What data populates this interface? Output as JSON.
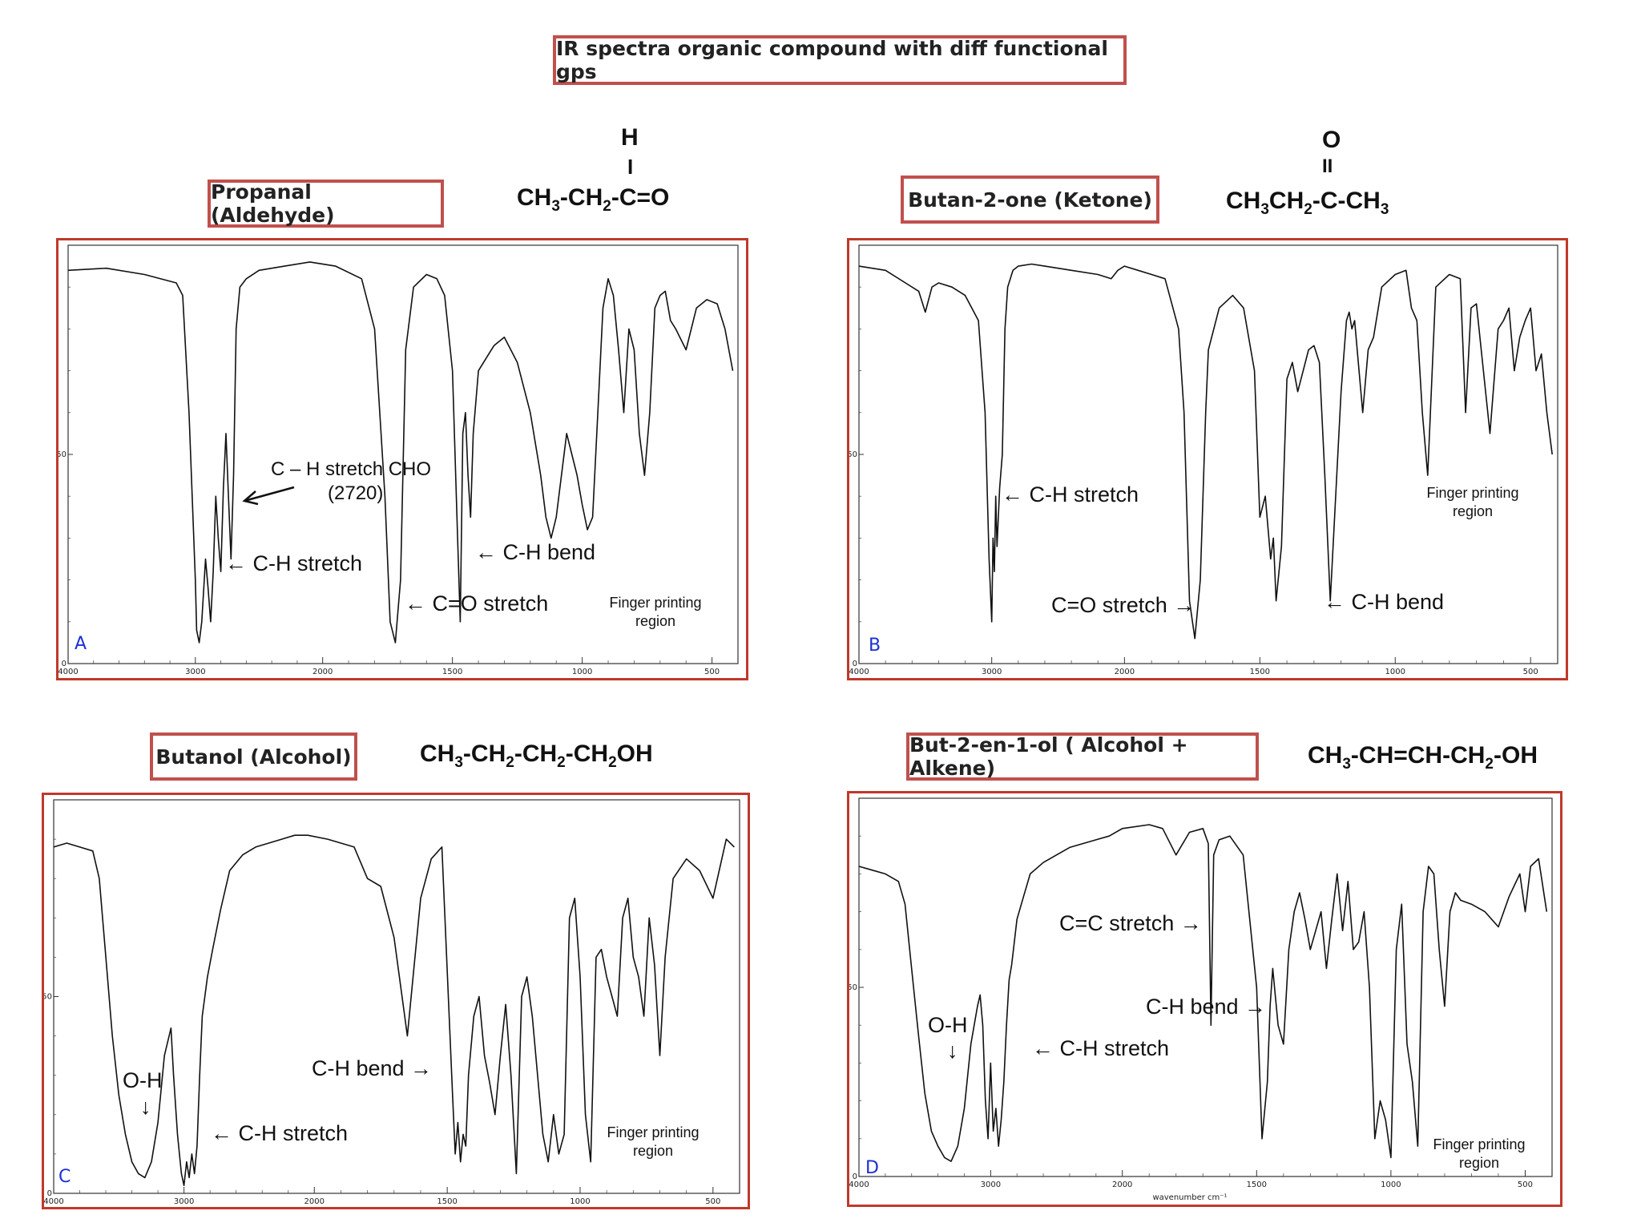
{
  "page_title": "IR spectra organic compound with diff functional gps",
  "compounds": [
    {
      "title": "Propanal (Aldehyde)",
      "formula_top": "H",
      "formula_mid": "I"
    },
    {
      "title": "Butan-2-one  (Ketone)",
      "formula_top": "O",
      "formula_mid": "II"
    },
    {
      "title": "Butanol (Alcohol)"
    },
    {
      "title": "But-2-en-1-ol ( Alcohol + Alkene)"
    }
  ],
  "chart_data": [
    {
      "type": "line",
      "panel_letter": "A",
      "xlabel": "",
      "ylabel": "",
      "x_ticks": [
        "4000",
        "3000",
        "2000",
        "1500",
        "1000",
        "500"
      ],
      "y_ticks": [
        "50",
        "0"
      ],
      "series": [
        {
          "x": [
            4000,
            3700,
            3400,
            3150,
            3100,
            3050,
            3000,
            2990,
            2970,
            2950,
            2920,
            2900,
            2880,
            2860,
            2840,
            2820,
            2800,
            2780,
            2760,
            2740,
            2720,
            2700,
            2680,
            2650,
            2600,
            2500,
            2300,
            2100,
            1950,
            1850,
            1800,
            1760,
            1740,
            1720,
            1700,
            1680,
            1650,
            1600,
            1560,
            1530,
            1500,
            1480,
            1470,
            1460,
            1450,
            1440,
            1430,
            1420,
            1400,
            1380,
            1360,
            1340,
            1300,
            1250,
            1200,
            1160,
            1140,
            1120,
            1100,
            1080,
            1060,
            1040,
            1020,
            1000,
            980,
            960,
            940,
            920,
            900,
            880,
            860,
            840,
            820,
            800,
            780,
            760,
            740,
            720,
            700,
            680,
            660,
            640,
            600,
            560,
            520,
            480,
            450,
            420
          ],
          "y": [
            94,
            94.5,
            93,
            91,
            88,
            60,
            20,
            8,
            5,
            10,
            25,
            18,
            10,
            22,
            40,
            30,
            22,
            42,
            55,
            40,
            25,
            45,
            80,
            90,
            92,
            94,
            95,
            96,
            95,
            92,
            80,
            40,
            10,
            5,
            20,
            75,
            90,
            93,
            92,
            88,
            70,
            30,
            10,
            55,
            60,
            45,
            35,
            55,
            70,
            72,
            74,
            76,
            78,
            72,
            60,
            45,
            35,
            30,
            35,
            45,
            55,
            50,
            45,
            38,
            32,
            35,
            60,
            85,
            92,
            88,
            75,
            60,
            80,
            75,
            55,
            45,
            60,
            85,
            88,
            89,
            82,
            80,
            75,
            85,
            87,
            86,
            80,
            70
          ]
        }
      ],
      "annotations": {
        "ch_cho": "C – H stretch CHO",
        "ch_cho_value": "(2720)",
        "ch_stretch": "← C-H stretch",
        "co": "← C=O stretch",
        "ch_bend": "← C-H bend",
        "fp1": "Finger printing",
        "fp2": "region"
      }
    },
    {
      "type": "line",
      "panel_letter": "B",
      "xlabel": "",
      "ylabel": "",
      "x_ticks": [
        "4000",
        "3000",
        "2000",
        "1500",
        "1000",
        "500"
      ],
      "y_ticks": [
        "50",
        "0"
      ],
      "series": [
        {
          "x": [
            4000,
            3800,
            3650,
            3550,
            3500,
            3450,
            3400,
            3300,
            3200,
            3100,
            3050,
            3020,
            3000,
            2990,
            2980,
            2970,
            2960,
            2940,
            2920,
            2900,
            2880,
            2860,
            2840,
            2800,
            2700,
            2600,
            2400,
            2200,
            2100,
            2050,
            2000,
            1950,
            1900,
            1850,
            1800,
            1780,
            1760,
            1740,
            1720,
            1700,
            1690,
            1650,
            1600,
            1560,
            1520,
            1500,
            1480,
            1460,
            1450,
            1440,
            1420,
            1400,
            1380,
            1360,
            1340,
            1320,
            1300,
            1280,
            1260,
            1240,
            1200,
            1180,
            1170,
            1160,
            1150,
            1120,
            1100,
            1080,
            1050,
            1000,
            960,
            940,
            920,
            900,
            880,
            850,
            800,
            760,
            740,
            720,
            700,
            650,
            620,
            600,
            580,
            560,
            540,
            520,
            500,
            480,
            460,
            440,
            420
          ],
          "y": [
            95,
            94,
            91,
            89,
            84,
            90,
            91,
            90,
            88,
            82,
            60,
            25,
            10,
            30,
            22,
            40,
            28,
            42,
            50,
            80,
            90,
            92,
            94,
            95,
            95.5,
            95,
            94,
            93,
            92,
            94,
            95,
            94,
            93,
            92,
            80,
            60,
            15,
            6,
            20,
            60,
            75,
            85,
            88,
            85,
            70,
            35,
            40,
            25,
            30,
            15,
            28,
            68,
            72,
            65,
            70,
            75,
            76,
            72,
            45,
            15,
            65,
            82,
            84,
            80,
            82,
            60,
            75,
            78,
            90,
            93,
            94,
            85,
            82,
            60,
            45,
            90,
            93,
            92,
            60,
            85,
            86,
            55,
            80,
            82,
            85,
            70,
            78,
            82,
            85,
            70,
            74,
            60,
            50
          ]
        }
      ],
      "annotations": {
        "ch_stretch": "← C-H stretch",
        "co": "C=O stretch →",
        "ch_bend": "← C-H bend",
        "fp1": "Finger printing",
        "fp2": "region"
      }
    },
    {
      "type": "line",
      "panel_letter": "C",
      "xlabel": "",
      "ylabel": "",
      "x_ticks": [
        "4000",
        "3000",
        "2000",
        "1500",
        "1000",
        "500"
      ],
      "y_ticks": [
        "50",
        "0"
      ],
      "series": [
        {
          "x": [
            4000,
            3900,
            3800,
            3700,
            3650,
            3600,
            3550,
            3500,
            3450,
            3400,
            3350,
            3300,
            3250,
            3200,
            3150,
            3100,
            3080,
            3050,
            3020,
            3000,
            2980,
            2960,
            2940,
            2920,
            2900,
            2880,
            2860,
            2820,
            2780,
            2720,
            2650,
            2550,
            2450,
            2350,
            2250,
            2150,
            2050,
            1950,
            1850,
            1800,
            1750,
            1700,
            1650,
            1600,
            1560,
            1520,
            1480,
            1470,
            1460,
            1450,
            1440,
            1430,
            1420,
            1400,
            1380,
            1360,
            1340,
            1320,
            1300,
            1280,
            1260,
            1240,
            1220,
            1200,
            1180,
            1160,
            1140,
            1120,
            1100,
            1080,
            1060,
            1040,
            1020,
            1000,
            980,
            960,
            940,
            920,
            900,
            880,
            860,
            840,
            820,
            800,
            780,
            760,
            740,
            720,
            700,
            680,
            650,
            600,
            550,
            500,
            450,
            420
          ],
          "y": [
            88,
            89,
            88,
            87,
            80,
            60,
            40,
            25,
            15,
            8,
            5,
            4,
            8,
            18,
            35,
            42,
            30,
            15,
            5,
            2,
            8,
            4,
            10,
            5,
            12,
            30,
            45,
            55,
            62,
            72,
            82,
            86,
            88,
            89,
            90,
            91,
            91,
            90,
            88,
            80,
            78,
            65,
            40,
            75,
            85,
            88,
            25,
            10,
            18,
            8,
            15,
            12,
            30,
            45,
            50,
            35,
            28,
            20,
            35,
            48,
            30,
            5,
            50,
            55,
            45,
            30,
            15,
            8,
            20,
            10,
            15,
            70,
            75,
            55,
            20,
            8,
            60,
            62,
            55,
            50,
            45,
            70,
            75,
            60,
            55,
            45,
            70,
            58,
            35,
            60,
            80,
            85,
            82,
            75,
            90,
            88
          ]
        }
      ],
      "annotations": {
        "oh": "O-H",
        "oh_arrow": "↓",
        "ch_stretch": "← C-H stretch",
        "ch_bend": "C-H bend →",
        "fp1": "Finger printing",
        "fp2": "region"
      }
    },
    {
      "type": "line",
      "panel_letter": "D",
      "xlabel": "wavenumber cm⁻¹",
      "ylabel": "",
      "x_ticks": [
        "4000",
        "3000",
        "2000",
        "1500",
        "1000",
        "500"
      ],
      "y_ticks": [
        "50",
        "0"
      ],
      "series": [
        {
          "x": [
            4000,
            3900,
            3800,
            3700,
            3650,
            3600,
            3550,
            3500,
            3450,
            3400,
            3350,
            3300,
            3250,
            3200,
            3150,
            3100,
            3080,
            3060,
            3040,
            3020,
            3000,
            2980,
            2960,
            2940,
            2920,
            2900,
            2880,
            2860,
            2840,
            2800,
            2750,
            2700,
            2600,
            2500,
            2400,
            2300,
            2200,
            2100,
            2000,
            1900,
            1850,
            1800,
            1750,
            1700,
            1680,
            1670,
            1660,
            1640,
            1600,
            1550,
            1500,
            1480,
            1460,
            1450,
            1440,
            1420,
            1400,
            1380,
            1360,
            1340,
            1320,
            1300,
            1280,
            1260,
            1240,
            1220,
            1200,
            1180,
            1160,
            1140,
            1120,
            1100,
            1080,
            1060,
            1040,
            1020,
            1000,
            980,
            960,
            940,
            920,
            900,
            880,
            860,
            840,
            820,
            800,
            780,
            760,
            740,
            700,
            650,
            600,
            560,
            520,
            500,
            480,
            450,
            420
          ],
          "y": [
            82,
            81,
            80,
            78,
            72,
            55,
            38,
            22,
            12,
            8,
            5,
            4,
            8,
            18,
            35,
            45,
            48,
            40,
            20,
            10,
            30,
            12,
            18,
            8,
            15,
            25,
            40,
            52,
            56,
            68,
            74,
            80,
            83,
            85,
            87,
            88,
            89,
            90,
            92,
            93,
            92,
            85,
            91,
            92,
            88,
            40,
            85,
            89,
            90,
            85,
            50,
            10,
            25,
            45,
            55,
            40,
            35,
            60,
            70,
            75,
            68,
            60,
            65,
            70,
            55,
            68,
            80,
            65,
            78,
            60,
            62,
            70,
            50,
            10,
            20,
            15,
            5,
            60,
            72,
            35,
            25,
            8,
            70,
            82,
            80,
            60,
            45,
            70,
            75,
            73,
            72,
            70,
            66,
            74,
            80,
            70,
            82,
            84,
            70
          ]
        }
      ],
      "annotations": {
        "oh": "O-H",
        "oh_arrow": "↓",
        "ch_stretch": "← C-H stretch",
        "ch_bend": "C-H bend →",
        "cc": "C=C stretch →",
        "fp1": "Finger printing",
        "fp2": "region"
      }
    }
  ]
}
